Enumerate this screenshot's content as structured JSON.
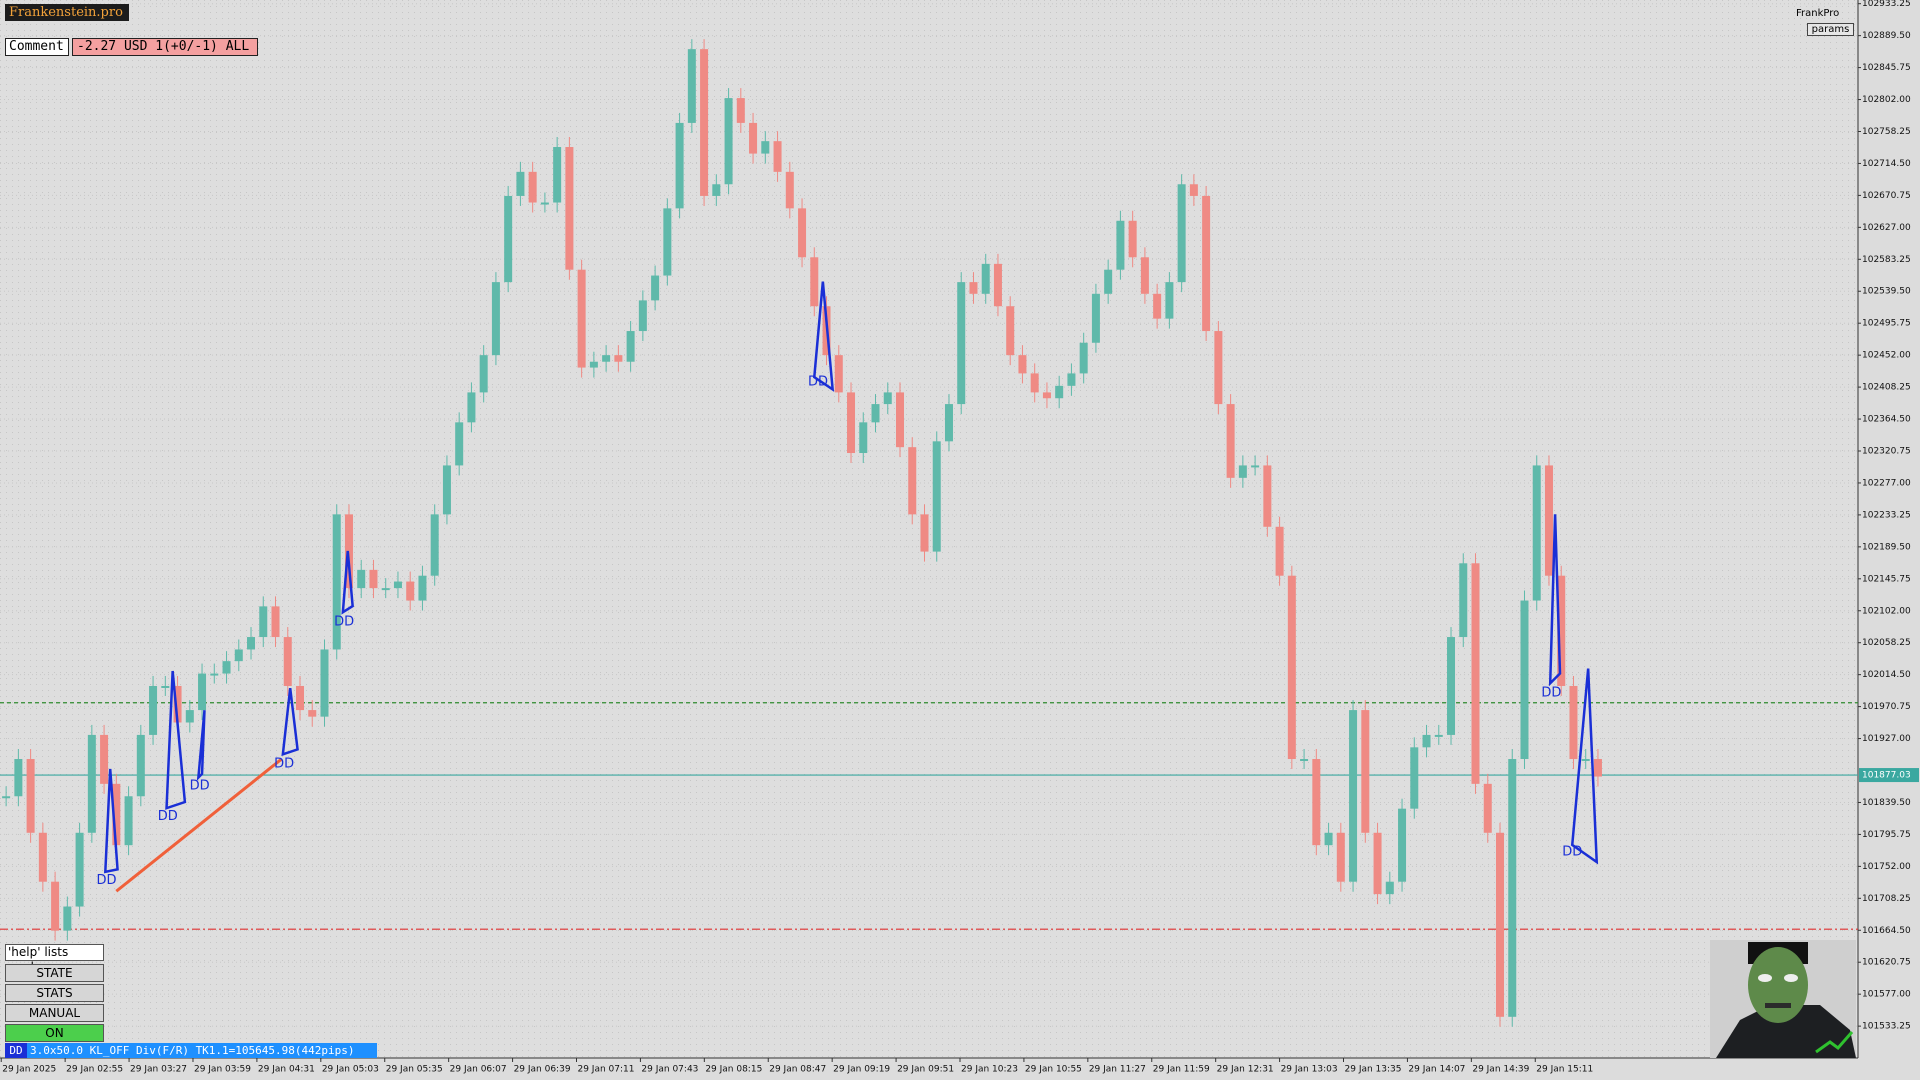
{
  "ui": {
    "brand": "Frankenstein.pro",
    "comment_label": "Comment",
    "comment_value": "-2.27 USD 1(+0/-1) ALL",
    "top_right_name": "FrankPro",
    "params_button": "params",
    "help_text": "'help' lists cmds",
    "buttons": [
      "STATE",
      "STATS",
      "MANUAL",
      "ON"
    ],
    "status_tag": "DD",
    "status_text": "3.0x50.0 KL_OFF Div(F/R) TK1.1=105645.98(442pips)"
  },
  "chart_data": {
    "type": "candlestick",
    "up_color": "#5fb9aa",
    "down_color": "#ef8a84",
    "values": [
      101848,
      101899,
      101798,
      101731,
      101664,
      101697,
      101798,
      101932,
      101865,
      101781,
      101848,
      101932,
      101999,
      101999,
      101949,
      101966,
      102016,
      102016,
      102033,
      102049,
      102066,
      102108,
      102066,
      101999,
      101966,
      101957,
      102049,
      102234,
      102133,
      102158,
      102133,
      102133,
      102142,
      102116,
      102150,
      102234,
      102301,
      102360,
      102401,
      102452,
      102552,
      102670,
      102703,
      102661,
      102661,
      102737,
      102569,
      102435,
      102443,
      102452,
      102443,
      102485,
      102527,
      102561,
      102653,
      102770,
      102871,
      102670,
      102686,
      102804,
      102770,
      102728,
      102745,
      102703,
      102653,
      102586,
      102519,
      102452,
      102401,
      102318,
      102360,
      102385,
      102401,
      102326,
      102234,
      102183,
      102334,
      102385,
      102552,
      102536,
      102577,
      102519,
      102452,
      102427,
      102401,
      102393,
      102410,
      102427,
      102469,
      102536,
      102569,
      102636,
      102586,
      102536,
      102502,
      102552,
      102686,
      102670,
      102485,
      102385,
      102284,
      102301,
      102301,
      102217,
      102150,
      101899,
      101899,
      101781,
      101798,
      101731,
      101966,
      101798,
      101714,
      101731,
      101831,
      101915,
      101932,
      101932,
      102066,
      102167,
      101865,
      101798,
      101546,
      101899,
      102116,
      102301,
      102150,
      101999,
      101899,
      101899,
      101875
    ],
    "ylim": [
      101489.6,
      102938.3
    ],
    "yticks": [
      102933.25,
      {
        "value": 102889.5,
        "label": "102889.50"
      },
      102845.75,
      {
        "value": 102802,
        "label": "102802.00"
      },
      102758.25,
      {
        "value": 102714.5,
        "label": "102714.50"
      },
      102670.75,
      {
        "value": 102627,
        "label": "102627.00"
      },
      102583.25,
      {
        "value": 102539.5,
        "label": "102539.50"
      },
      102495.75,
      {
        "value": 102452,
        "label": "102452.00"
      },
      102408.25,
      {
        "value": 102364.5,
        "label": "102364.50"
      },
      102320.75,
      {
        "value": 102277,
        "label": "102277.00"
      },
      102233.25,
      {
        "value": 102189.5,
        "label": "102189.50"
      },
      102145.75,
      {
        "value": 102102,
        "label": "102102.00"
      },
      102058.25,
      {
        "value": 102014.5,
        "label": "102014.50"
      },
      101970.75,
      {
        "value": 101927,
        "label": "101927.00"
      },
      {
        "value": 101839.5,
        "label": "101839.50"
      },
      101795.75,
      {
        "value": 101752,
        "label": "101752.00"
      },
      101708.25,
      {
        "value": 101664.5,
        "label": "101664.50"
      },
      101620.75,
      {
        "value": 101577,
        "label": "101577.00"
      },
      101533.25
    ],
    "xtick_labels": [
      "29 Jan 2025",
      "29 Jan 02:55",
      "29 Jan 03:27",
      "29 Jan 03:59",
      "29 Jan 04:31",
      "29 Jan 05:03",
      "29 Jan 05:35",
      "29 Jan 06:07",
      "29 Jan 06:39",
      "29 Jan 07:11",
      "29 Jan 07:43",
      "29 Jan 08:15",
      "29 Jan 08:47",
      "29 Jan 09:19",
      "29 Jan 09:51",
      "29 Jan 10:23",
      "29 Jan 10:55",
      "29 Jan 11:27",
      "29 Jan 11:59",
      "29 Jan 12:31",
      "29 Jan 13:03",
      "29 Jan 13:35",
      "29 Jan 14:07",
      "29 Jan 14:39",
      "29 Jan 15:11"
    ],
    "levels": [
      {
        "value": 101976,
        "color": "#2e8b2e",
        "style": "dashed"
      },
      {
        "value": 101877.03,
        "label": "101877.03",
        "color": "#3aa8a0",
        "style": "solid"
      },
      {
        "value": 101666,
        "color": "#e03030",
        "style": "dashdot"
      }
    ],
    "trendline": {
      "values": [
        101718,
        101899
      ],
      "color": "#f0603a"
    },
    "annotations": [
      "DD",
      "DD",
      "DD",
      "DD",
      "DD",
      "DD",
      "DD",
      "DD"
    ],
    "annotation_color": "#1a2fd6",
    "grid": true
  }
}
